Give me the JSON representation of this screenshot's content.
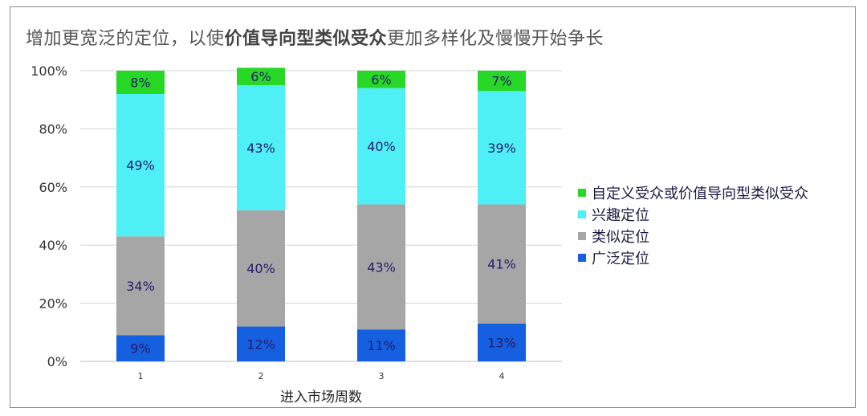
{
  "title": {
    "pre": "增加更宽泛的定位，以使",
    "em": "价值导向型类似受众",
    "post": "更加多样化及慢慢开始争长"
  },
  "chart_data": {
    "type": "bar",
    "stacked": true,
    "categories": [
      "1",
      "2",
      "3",
      "4"
    ],
    "xlabel": "进入市场周数",
    "ylabel": "",
    "ylim": [
      0,
      100
    ],
    "yticks": [
      "0%",
      "20%",
      "40%",
      "60%",
      "80%",
      "100%"
    ],
    "grid": true,
    "legend_position": "right",
    "series": [
      {
        "name": "广泛定位",
        "color": "#1560e0",
        "values": [
          9,
          12,
          11,
          13
        ],
        "labels": [
          "9%",
          "12%",
          "11%",
          "13%"
        ]
      },
      {
        "name": "类似定位",
        "color": "#a6a6a6",
        "values": [
          34,
          40,
          43,
          41
        ],
        "labels": [
          "34%",
          "40%",
          "43%",
          "41%"
        ]
      },
      {
        "name": "兴趣定位",
        "color": "#4ff0f5",
        "values": [
          49,
          43,
          40,
          39
        ],
        "labels": [
          "49%",
          "43%",
          "40%",
          "39%"
        ]
      },
      {
        "name": "自定义受众或价值导向型类似受众",
        "color": "#27d827",
        "values": [
          8,
          6,
          6,
          7
        ],
        "labels": [
          "8%",
          "6%",
          "6%",
          "7%"
        ]
      }
    ]
  },
  "legend": [
    {
      "label": "自定义受众或价值导向型类似受众",
      "color": "#27d827"
    },
    {
      "label": "兴趣定位",
      "color": "#4ff0f5"
    },
    {
      "label": "类似定位",
      "color": "#a6a6a6"
    },
    {
      "label": "广泛定位",
      "color": "#1560e0"
    }
  ]
}
